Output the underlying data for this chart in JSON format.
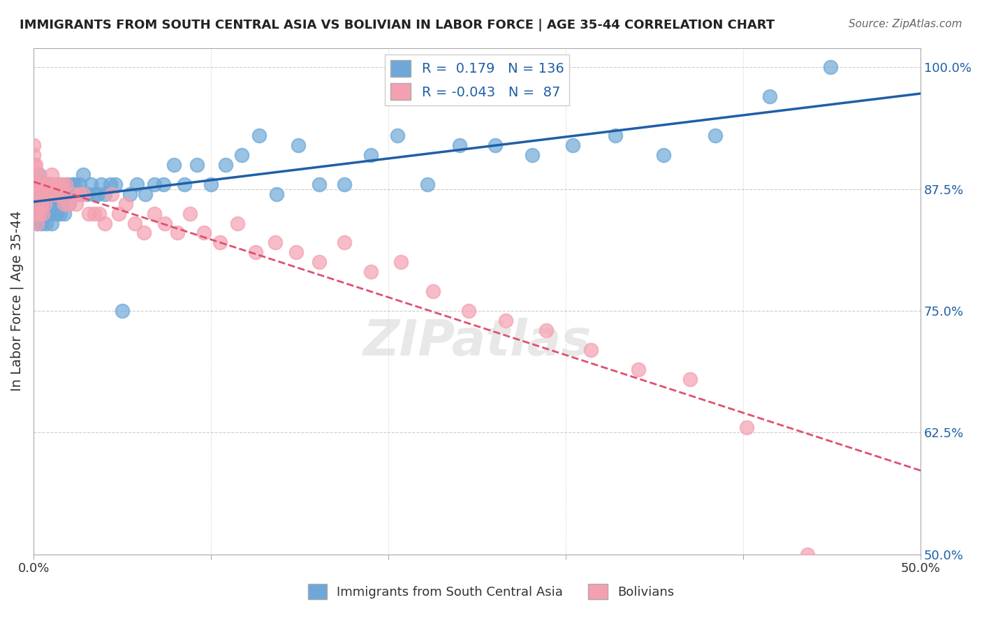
{
  "title": "IMMIGRANTS FROM SOUTH CENTRAL ASIA VS BOLIVIAN IN LABOR FORCE | AGE 35-44 CORRELATION CHART",
  "source": "Source: ZipAtlas.com",
  "xlabel": "",
  "ylabel": "In Labor Force | Age 35-44",
  "xlim": [
    0.0,
    0.5
  ],
  "ylim": [
    0.5,
    1.02
  ],
  "xticks": [
    0.0,
    0.1,
    0.2,
    0.3,
    0.4,
    0.5
  ],
  "xticklabels": [
    "0.0%",
    "",
    "",
    "",
    "",
    "50.0%"
  ],
  "yticks_right": [
    0.5,
    0.625,
    0.75,
    0.875,
    1.0
  ],
  "ytick_right_labels": [
    "50.0%",
    "62.5%",
    "75.0%",
    "87.5%",
    "100.0%"
  ],
  "blue_color": "#6ea8d8",
  "pink_color": "#f4a0b0",
  "blue_line_color": "#1f5fa6",
  "pink_line_color": "#e05070",
  "legend_blue_r": "0.179",
  "legend_blue_n": "136",
  "legend_pink_r": "-0.043",
  "legend_pink_n": "87",
  "legend_label_blue": "Immigrants from South Central Asia",
  "legend_label_pink": "Bolivians",
  "watermark": "ZIPatlas",
  "blue_scatter_x": [
    0.0,
    0.0,
    0.0,
    0.001,
    0.001,
    0.002,
    0.002,
    0.002,
    0.003,
    0.003,
    0.003,
    0.004,
    0.004,
    0.004,
    0.005,
    0.005,
    0.006,
    0.006,
    0.007,
    0.007,
    0.008,
    0.008,
    0.009,
    0.009,
    0.01,
    0.01,
    0.01,
    0.011,
    0.012,
    0.012,
    0.013,
    0.014,
    0.015,
    0.015,
    0.016,
    0.017,
    0.018,
    0.019,
    0.02,
    0.021,
    0.022,
    0.023,
    0.024,
    0.025,
    0.026,
    0.027,
    0.028,
    0.03,
    0.032,
    0.034,
    0.036,
    0.038,
    0.04,
    0.043,
    0.046,
    0.05,
    0.054,
    0.058,
    0.063,
    0.068,
    0.073,
    0.079,
    0.085,
    0.092,
    0.1,
    0.108,
    0.117,
    0.127,
    0.137,
    0.149,
    0.161,
    0.175,
    0.19,
    0.205,
    0.222,
    0.24,
    0.26,
    0.281,
    0.304,
    0.328,
    0.355,
    0.384,
    0.415,
    0.449
  ],
  "blue_scatter_y": [
    0.85,
    0.87,
    0.88,
    0.86,
    0.87,
    0.84,
    0.86,
    0.88,
    0.85,
    0.87,
    0.89,
    0.84,
    0.86,
    0.88,
    0.85,
    0.87,
    0.85,
    0.87,
    0.84,
    0.87,
    0.85,
    0.88,
    0.86,
    0.88,
    0.84,
    0.86,
    0.88,
    0.86,
    0.85,
    0.87,
    0.85,
    0.87,
    0.85,
    0.88,
    0.86,
    0.85,
    0.87,
    0.88,
    0.86,
    0.87,
    0.88,
    0.88,
    0.87,
    0.87,
    0.88,
    0.87,
    0.89,
    0.87,
    0.88,
    0.87,
    0.87,
    0.88,
    0.87,
    0.88,
    0.88,
    0.75,
    0.87,
    0.88,
    0.87,
    0.88,
    0.88,
    0.9,
    0.88,
    0.9,
    0.88,
    0.9,
    0.91,
    0.93,
    0.87,
    0.92,
    0.88,
    0.88,
    0.91,
    0.93,
    0.88,
    0.92,
    0.92,
    0.91,
    0.92,
    0.93,
    0.91,
    0.93,
    0.97,
    1.0
  ],
  "pink_scatter_x": [
    0.0,
    0.0,
    0.0,
    0.0,
    0.0,
    0.001,
    0.001,
    0.001,
    0.002,
    0.002,
    0.002,
    0.003,
    0.003,
    0.003,
    0.004,
    0.004,
    0.005,
    0.005,
    0.006,
    0.006,
    0.007,
    0.008,
    0.009,
    0.01,
    0.011,
    0.012,
    0.013,
    0.014,
    0.015,
    0.016,
    0.017,
    0.018,
    0.02,
    0.022,
    0.024,
    0.026,
    0.028,
    0.031,
    0.034,
    0.037,
    0.04,
    0.044,
    0.048,
    0.052,
    0.057,
    0.062,
    0.068,
    0.074,
    0.081,
    0.088,
    0.096,
    0.105,
    0.115,
    0.125,
    0.136,
    0.148,
    0.161,
    0.175,
    0.19,
    0.207,
    0.225,
    0.245,
    0.266,
    0.289,
    0.314,
    0.341,
    0.37,
    0.402,
    0.436
  ],
  "pink_scatter_y": [
    0.88,
    0.89,
    0.9,
    0.91,
    0.92,
    0.85,
    0.87,
    0.9,
    0.84,
    0.86,
    0.88,
    0.85,
    0.87,
    0.89,
    0.86,
    0.88,
    0.85,
    0.87,
    0.86,
    0.88,
    0.87,
    0.88,
    0.88,
    0.89,
    0.87,
    0.88,
    0.87,
    0.88,
    0.87,
    0.88,
    0.86,
    0.88,
    0.86,
    0.87,
    0.86,
    0.87,
    0.87,
    0.85,
    0.85,
    0.85,
    0.84,
    0.87,
    0.85,
    0.86,
    0.84,
    0.83,
    0.85,
    0.84,
    0.83,
    0.85,
    0.83,
    0.82,
    0.84,
    0.81,
    0.82,
    0.81,
    0.8,
    0.82,
    0.79,
    0.8,
    0.77,
    0.75,
    0.74,
    0.73,
    0.71,
    0.69,
    0.68,
    0.63,
    0.5
  ]
}
